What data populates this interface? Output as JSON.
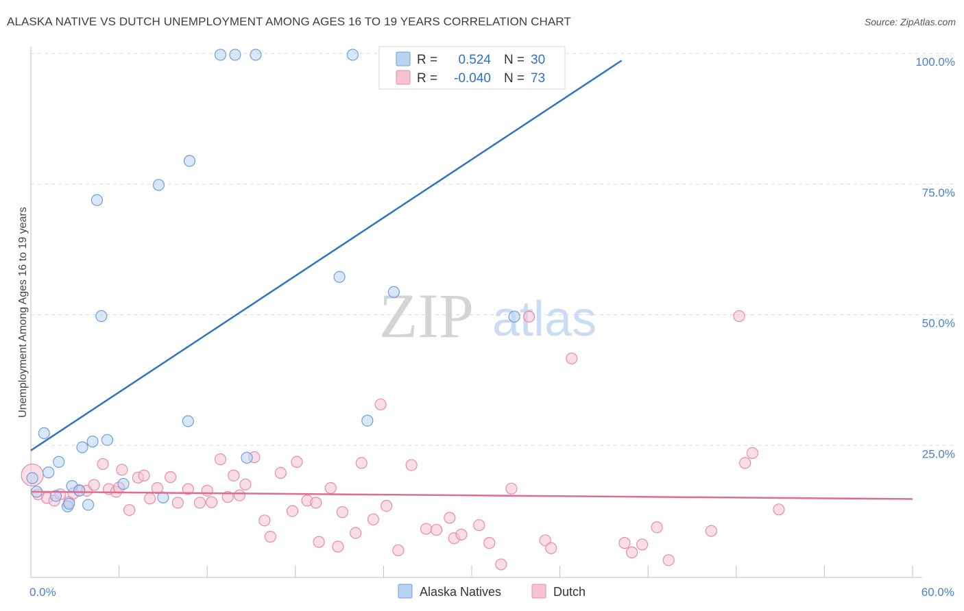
{
  "header": {
    "title": "ALASKA NATIVE VS DUTCH UNEMPLOYMENT AMONG AGES 16 TO 19 YEARS CORRELATION CHART",
    "source": "Source: ZipAtlas.com"
  },
  "watermark": {
    "zip": "ZIP",
    "atlas": "atlas"
  },
  "legend": {
    "rows": [
      {
        "r_label": "R =",
        "r_value": "0.524",
        "n_label": "N =",
        "n_value": "30"
      },
      {
        "r_label": "R =",
        "r_value": "-0.040",
        "n_label": "N =",
        "n_value": "73"
      }
    ],
    "bottom": [
      "Alaska Natives",
      "Dutch"
    ]
  },
  "colors": {
    "alaska_fill": "#b9d3f2",
    "alaska_stroke": "#6f9fd8",
    "alaska_line": "#2f72c4",
    "dutch_fill": "#f6c3d3",
    "dutch_stroke": "#e88aa8",
    "dutch_line": "#e06a92",
    "value_text": "#2f6fcb",
    "grid": "#d9d9d9"
  },
  "chart_data": {
    "type": "scatter",
    "title": "ALASKA NATIVE VS DUTCH UNEMPLOYMENT AMONG AGES 16 TO 19 YEARS CORRELATION CHART",
    "xlabel": "",
    "ylabel": "Unemployment Among Ages 16 to 19 years",
    "xlim": [
      0,
      60
    ],
    "ylim": [
      0,
      100
    ],
    "x_tick_labels": [
      "0.0%",
      "60.0%"
    ],
    "y_tick_labels": [
      "25.0%",
      "50.0%",
      "75.0%",
      "100.0%"
    ],
    "y_ticks": [
      25,
      50,
      75,
      100
    ],
    "grid": true,
    "legend_position": "top-center",
    "series": [
      {
        "name": "Alaska Natives",
        "r": 0.524,
        "n": 30,
        "trend": {
          "x": [
            0,
            40.2
          ],
          "y": [
            24.3,
            98.9
          ]
        },
        "points": [
          [
            0.1,
            19.0
          ],
          [
            0.4,
            16.4
          ],
          [
            0.9,
            27.6
          ],
          [
            1.2,
            20.1
          ],
          [
            1.9,
            22.1
          ],
          [
            1.7,
            15.6
          ],
          [
            2.5,
            13.6
          ],
          [
            2.6,
            14.1
          ],
          [
            2.8,
            17.5
          ],
          [
            3.3,
            16.6
          ],
          [
            3.5,
            24.9
          ],
          [
            3.9,
            13.9
          ],
          [
            4.2,
            26.0
          ],
          [
            4.5,
            72.2
          ],
          [
            4.8,
            50.0
          ],
          [
            5.2,
            26.3
          ],
          [
            6.3,
            17.9
          ],
          [
            8.7,
            75.1
          ],
          [
            9.0,
            15.3
          ],
          [
            10.7,
            29.9
          ],
          [
            10.8,
            79.7
          ],
          [
            12.9,
            100.0
          ],
          [
            13.9,
            100.0
          ],
          [
            15.3,
            100.0
          ],
          [
            14.7,
            22.9
          ],
          [
            21.0,
            57.5
          ],
          [
            21.9,
            100.0
          ],
          [
            22.9,
            30.0
          ],
          [
            24.7,
            54.6
          ],
          [
            32.9,
            49.9
          ]
        ]
      },
      {
        "name": "Dutch",
        "r": -0.04,
        "n": 73,
        "trend": {
          "x": [
            0,
            60
          ],
          "y": [
            16.4,
            15.0
          ]
        },
        "points": [
          [
            0.1,
            19.6
          ],
          [
            0.5,
            15.9
          ],
          [
            1.1,
            15.2
          ],
          [
            1.6,
            14.7
          ],
          [
            2.0,
            15.9
          ],
          [
            2.6,
            14.4
          ],
          [
            2.9,
            16.1
          ],
          [
            3.3,
            16.7
          ],
          [
            3.8,
            16.6
          ],
          [
            4.3,
            17.7
          ],
          [
            4.9,
            21.7
          ],
          [
            5.3,
            16.9
          ],
          [
            5.8,
            16.4
          ],
          [
            6.0,
            17.2
          ],
          [
            6.2,
            20.6
          ],
          [
            6.7,
            12.9
          ],
          [
            7.3,
            19.1
          ],
          [
            7.7,
            19.5
          ],
          [
            8.1,
            15.1
          ],
          [
            8.6,
            17.1
          ],
          [
            9.5,
            19.2
          ],
          [
            10.0,
            14.3
          ],
          [
            10.7,
            16.9
          ],
          [
            11.5,
            14.3
          ],
          [
            12.0,
            16.6
          ],
          [
            12.3,
            14.4
          ],
          [
            12.9,
            22.6
          ],
          [
            13.4,
            15.4
          ],
          [
            13.8,
            19.5
          ],
          [
            14.2,
            15.7
          ],
          [
            14.6,
            17.8
          ],
          [
            15.2,
            23.0
          ],
          [
            15.9,
            10.9
          ],
          [
            16.3,
            7.8
          ],
          [
            17.0,
            20.0
          ],
          [
            17.8,
            12.7
          ],
          [
            18.1,
            22.1
          ],
          [
            18.8,
            14.7
          ],
          [
            19.4,
            14.3
          ],
          [
            19.6,
            6.8
          ],
          [
            20.4,
            17.1
          ],
          [
            20.9,
            5.9
          ],
          [
            21.2,
            12.5
          ],
          [
            22.1,
            8.5
          ],
          [
            22.5,
            21.9
          ],
          [
            23.3,
            11.1
          ],
          [
            23.8,
            33.1
          ],
          [
            24.2,
            13.7
          ],
          [
            25.0,
            5.2
          ],
          [
            25.9,
            21.5
          ],
          [
            26.9,
            9.3
          ],
          [
            27.6,
            9.1
          ],
          [
            28.5,
            11.4
          ],
          [
            28.8,
            7.5
          ],
          [
            29.3,
            8.2
          ],
          [
            30.5,
            10.0
          ],
          [
            31.2,
            6.6
          ],
          [
            32.0,
            2.5
          ],
          [
            32.7,
            17.0
          ],
          [
            33.9,
            49.9
          ],
          [
            35.0,
            7.1
          ],
          [
            35.4,
            5.6
          ],
          [
            36.8,
            41.9
          ],
          [
            40.4,
            6.6
          ],
          [
            40.9,
            4.8
          ],
          [
            41.6,
            6.3
          ],
          [
            42.6,
            9.6
          ],
          [
            43.4,
            3.3
          ],
          [
            46.3,
            8.9
          ],
          [
            48.2,
            50.0
          ],
          [
            48.6,
            21.9
          ],
          [
            49.1,
            23.8
          ],
          [
            50.9,
            13.0
          ]
        ]
      }
    ]
  }
}
